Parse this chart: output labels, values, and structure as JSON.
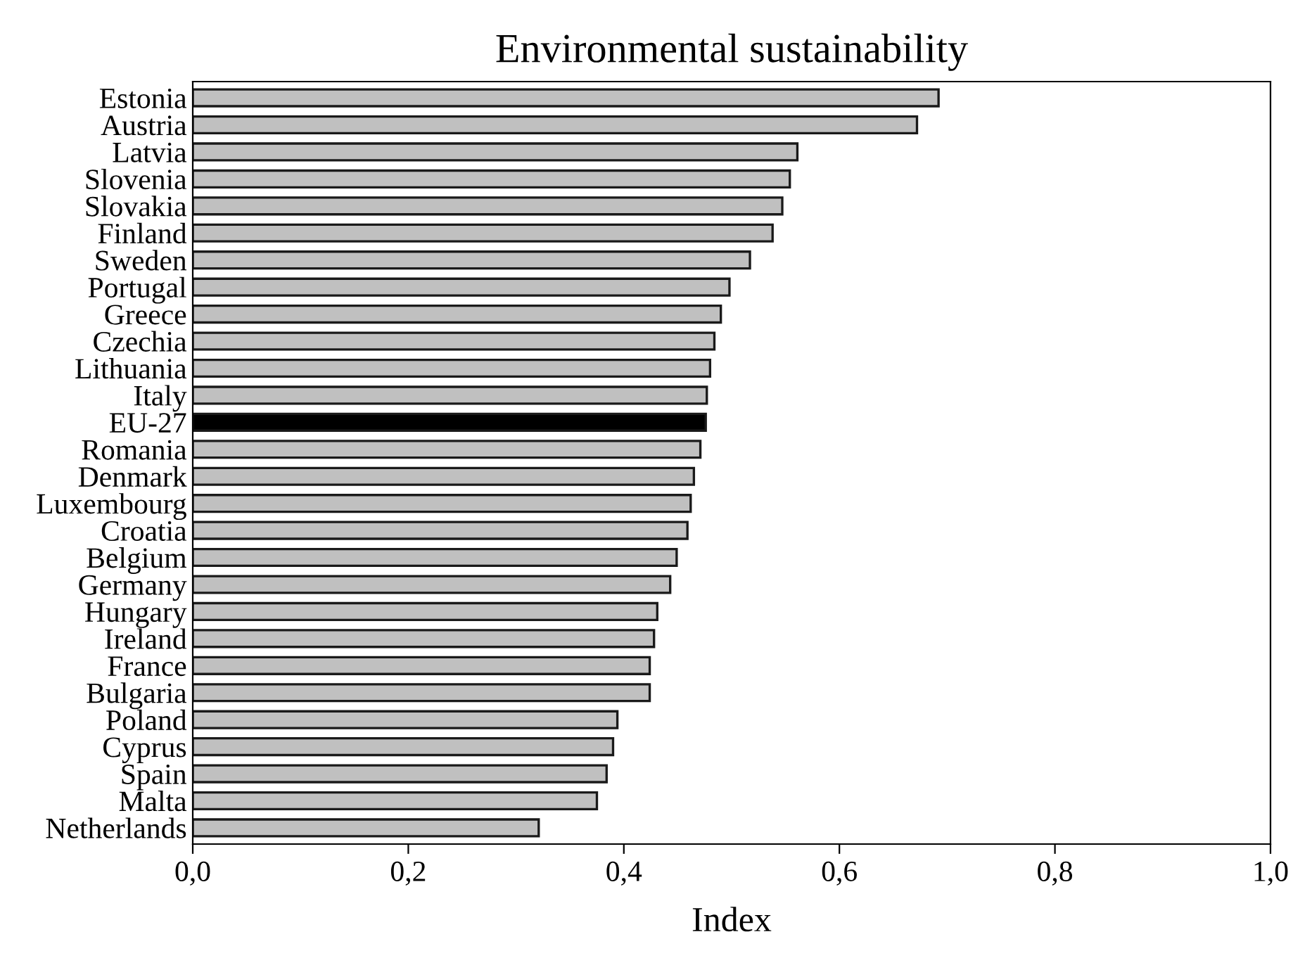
{
  "chart_data": {
    "type": "bar",
    "orientation": "horizontal",
    "title": "Environmental sustainability",
    "xlabel": "Index",
    "categories": [
      "Estonia",
      "Austria",
      "Latvia",
      "Slovenia",
      "Slovakia",
      "Finland",
      "Sweden",
      "Portugal",
      "Greece",
      "Czechia",
      "Lithuania",
      "Italy",
      "EU-27",
      "Romania",
      "Denmark",
      "Luxembourg",
      "Croatia",
      "Belgium",
      "Germany",
      "Hungary",
      "Ireland",
      "France",
      "Bulgaria",
      "Poland",
      "Cyprus",
      "Spain",
      "Malta",
      "Netherlands"
    ],
    "values": [
      0.692,
      0.672,
      0.561,
      0.554,
      0.547,
      0.538,
      0.517,
      0.498,
      0.49,
      0.484,
      0.48,
      0.477,
      0.476,
      0.471,
      0.465,
      0.462,
      0.459,
      0.449,
      0.443,
      0.431,
      0.428,
      0.424,
      0.424,
      0.394,
      0.39,
      0.384,
      0.375,
      0.321
    ],
    "colors": [
      "#c0c0c0",
      "#c0c0c0",
      "#c0c0c0",
      "#c0c0c0",
      "#c0c0c0",
      "#c0c0c0",
      "#c0c0c0",
      "#c0c0c0",
      "#c0c0c0",
      "#c0c0c0",
      "#c0c0c0",
      "#c0c0c0",
      "#000000",
      "#c0c0c0",
      "#c0c0c0",
      "#c0c0c0",
      "#c0c0c0",
      "#c0c0c0",
      "#c0c0c0",
      "#c0c0c0",
      "#c0c0c0",
      "#c0c0c0",
      "#c0c0c0",
      "#c0c0c0",
      "#c0c0c0",
      "#c0c0c0",
      "#c0c0c0",
      "#c0c0c0"
    ],
    "xlim": [
      0,
      1
    ],
    "xticks": [
      {
        "value": 0,
        "label": "0,0"
      },
      {
        "value": 0.2,
        "label": "0,2"
      },
      {
        "value": 0.4,
        "label": "0,4"
      },
      {
        "value": 0.6,
        "label": "0,6"
      },
      {
        "value": 0.8,
        "label": "0,8"
      },
      {
        "value": 1,
        "label": "1,0"
      }
    ],
    "grid": false,
    "legend": false
  }
}
